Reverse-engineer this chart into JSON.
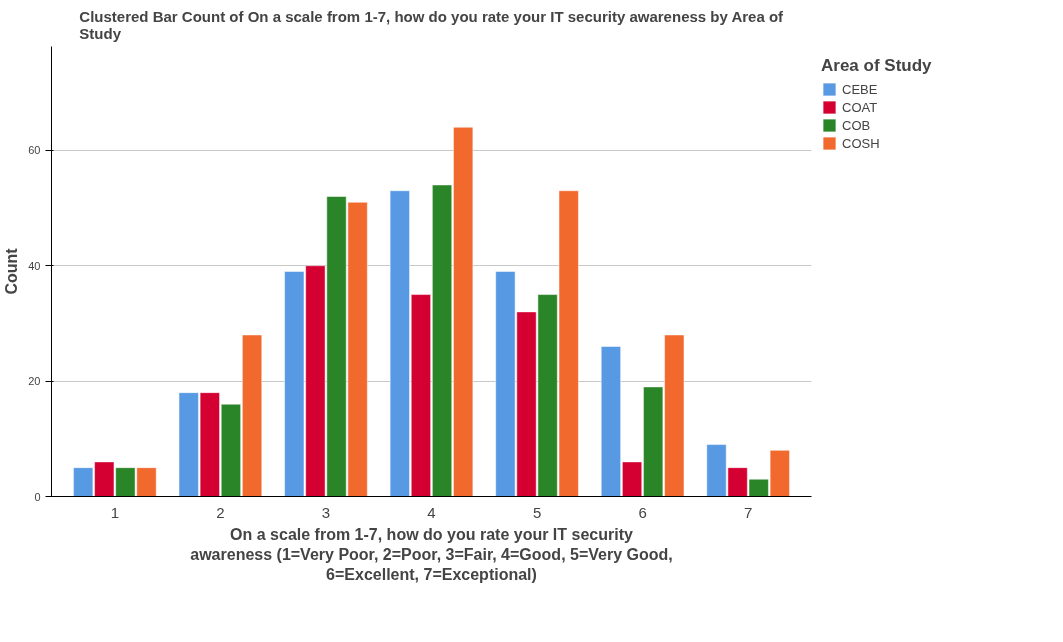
{
  "chart_data": {
    "type": "bar",
    "title": "Clustered Bar Count of On a scale from 1-7, how do you rate your IT security awareness by Area of Study",
    "xlabel": "On a scale from 1-7, how do you rate your IT security awareness (1=Very Poor, 2=Poor, 3=Fair, 4=Good, 5=Very Good, 6=Excellent, 7=Exceptional)",
    "ylabel": "Count",
    "legend_title": "Area of Study",
    "categories": [
      "1",
      "2",
      "3",
      "4",
      "5",
      "6",
      "7"
    ],
    "series": [
      {
        "name": "CEBE",
        "color": "#5799e3",
        "values": [
          5,
          18,
          39,
          53,
          39,
          26,
          9
        ]
      },
      {
        "name": "COAT",
        "color": "#d50032",
        "values": [
          6,
          18,
          40,
          35,
          32,
          6,
          5
        ]
      },
      {
        "name": "COB",
        "color": "#2a8528",
        "values": [
          5,
          16,
          52,
          54,
          35,
          19,
          3
        ]
      },
      {
        "name": "COSH",
        "color": "#f2692e",
        "values": [
          5,
          28,
          51,
          64,
          53,
          28,
          8
        ]
      }
    ],
    "ylim": [
      0,
      78
    ],
    "yticks": [
      0,
      20,
      40,
      60
    ],
    "grid": "y",
    "legend": "top right"
  }
}
